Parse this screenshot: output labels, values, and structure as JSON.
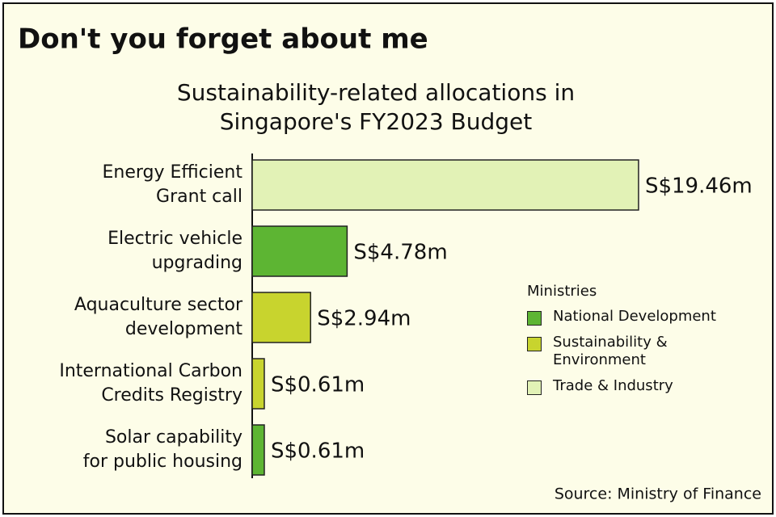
{
  "chart_data": {
    "type": "hbar",
    "title": "Don't you forget about me",
    "subtitle": [
      "Sustainability-related allocations in",
      "Singapore's FY2023 Budget"
    ],
    "categories": [
      [
        "Energy Efficient",
        "Grant call"
      ],
      [
        "Electric vehicle",
        "upgrading"
      ],
      [
        "Aquaculture sector",
        "development"
      ],
      [
        "International Carbon",
        "Credits Registry"
      ],
      [
        "Solar capability",
        "for public housing"
      ]
    ],
    "series": [
      {
        "name": "National Development",
        "color": "#5db533",
        "values": [
          null,
          4.78,
          null,
          null,
          0.61
        ],
        "value_labels": [
          null,
          "S$4.78m",
          null,
          null,
          "S$0.61m"
        ]
      },
      {
        "name": "Sustainability & Environment",
        "color": "#c8d42e",
        "values": [
          null,
          null,
          2.94,
          0.61,
          null
        ],
        "value_labels": [
          null,
          null,
          "S$2.94m",
          "S$0.61m",
          null
        ]
      },
      {
        "name": "Trade & Industry",
        "color": "#e2f2b6",
        "values": [
          19.46,
          null,
          null,
          null,
          null
        ],
        "value_labels": [
          "S$19.46m",
          null,
          null,
          null,
          null
        ]
      }
    ],
    "xlim": [
      0,
      25
    ],
    "legend_title": "Ministries",
    "legend_position": "right",
    "source": "Source: Ministry of Finance"
  }
}
